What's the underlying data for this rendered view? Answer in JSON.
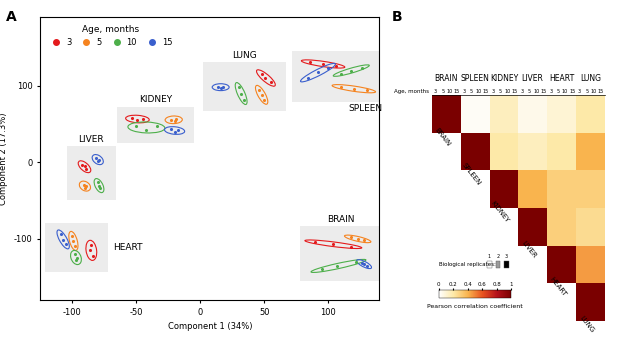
{
  "chart_data": [
    {
      "type": "scatter",
      "panel": "A",
      "x_label": "Component 1 (34%)",
      "y_label": "Component 2 (17.3%)",
      "xlim": [
        -125,
        140
      ],
      "ylim": [
        -180,
        190
      ],
      "xticks": [
        -100,
        -50,
        0,
        50,
        100
      ],
      "yticks": [
        -100,
        0,
        100
      ],
      "legend": "upper left",
      "legend_title": "Age, months",
      "tissues": [
        "LIVER",
        "HEART",
        "KIDNEY",
        "LUNG",
        "SPLEEN",
        "BRAIN"
      ],
      "series": [
        {
          "name": "3",
          "color": "#e41a1c",
          "points": {
            "LIVER": {
              "x": [
                -92,
                -89,
                -90
              ],
              "y": [
                -3,
                -9,
                -5
              ]
            },
            "HEART": {
              "x": [
                -85,
                -86,
                -84
              ],
              "y": [
                -108,
                -115,
                -122
              ]
            },
            "KIDNEY": {
              "x": [
                -53,
                -49,
                -45
              ],
              "y": [
                58,
                55,
                57
              ]
            },
            "LUNG": {
              "x": [
                48,
                51,
                55
              ],
              "y": [
                116,
                110,
                105
              ]
            },
            "SPLEEN": {
              "x": [
                86,
                96,
                106
              ],
              "y": [
                131,
                129,
                126
              ]
            },
            "BRAIN": {
              "x": [
                90,
                104,
                118
              ],
              "y": [
                -104,
                -107,
                -110
              ]
            }
          }
        },
        {
          "name": "5",
          "color": "#f5831f",
          "points": {
            "LIVER": {
              "x": [
                -91,
                -90,
                -89
              ],
              "y": [
                -29,
                -33,
                -31
              ]
            },
            "HEART": {
              "x": [
                -100,
                -99,
                -98
              ],
              "y": [
                -96,
                -103,
                -109
              ]
            },
            "KIDNEY": {
              "x": [
                -23,
                -20,
                -19
              ],
              "y": [
                56,
                54,
                57
              ]
            },
            "LUNG": {
              "x": [
                46,
                48,
                50
              ],
              "y": [
                95,
                88,
                82
              ]
            },
            "SPLEEN": {
              "x": [
                110,
                120,
                130
              ],
              "y": [
                99,
                96,
                94
              ]
            },
            "BRAIN": {
              "x": [
                118,
                123,
                128
              ],
              "y": [
                -98,
                -100,
                -102
              ]
            }
          }
        },
        {
          "name": "10",
          "color": "#4daf4a",
          "points": {
            "LIVER": {
              "x": [
                -80,
                -79,
                -78
              ],
              "y": [
                -26,
                -31,
                -34
              ]
            },
            "HEART": {
              "x": [
                -98,
                -96,
                -97
              ],
              "y": [
                -120,
                -125,
                -128
              ]
            },
            "KIDNEY": {
              "x": [
                -50,
                -42,
                -34
              ],
              "y": [
                48,
                42,
                47
              ]
            },
            "LUNG": {
              "x": [
                30,
                32,
                34
              ],
              "y": [
                98,
                90,
                82
              ]
            },
            "SPLEEN": {
              "x": [
                110,
                118,
                126
              ],
              "y": [
                116,
                120,
                124
              ]
            },
            "BRAIN": {
              "x": [
                95,
                107,
                122
              ],
              "y": [
                -140,
                -136,
                -130
              ]
            }
          }
        },
        {
          "name": "15",
          "color": "#3a5fcd",
          "points": {
            "LIVER": {
              "x": [
                -81,
                -79,
                -80
              ],
              "y": [
                6,
                3,
                2
              ]
            },
            "HEART": {
              "x": [
                -109,
                -107,
                -105
              ],
              "y": [
                -94,
                -101,
                -107
              ]
            },
            "KIDNEY": {
              "x": [
                -23,
                -20,
                -17
              ],
              "y": [
                43,
                40,
                42
              ]
            },
            "LUNG": {
              "x": [
                14,
                16,
                18
              ],
              "y": [
                99,
                97,
                99
              ]
            },
            "SPLEEN": {
              "x": [
                84,
                92,
                100
              ],
              "y": [
                110,
                118,
                124
              ]
            },
            "BRAIN": {
              "x": [
                126,
                128,
                130
              ],
              "y": [
                -131,
                -133,
                -135
              ]
            }
          }
        }
      ]
    },
    {
      "type": "heatmap",
      "panel": "B",
      "categories": [
        "BRAIN",
        "SPLEEN",
        "KIDNEY",
        "LIVER",
        "HEART",
        "LUNG"
      ],
      "cells": [
        [
          1,
          0.02,
          0.15,
          0.05,
          0.1,
          0.2
        ],
        [
          null,
          1,
          0.2,
          0.15,
          0.2,
          0.4
        ],
        [
          null,
          null,
          1,
          0.4,
          0.3,
          0.3
        ],
        [
          null,
          null,
          null,
          1,
          0.3,
          0.25
        ],
        [
          null,
          null,
          null,
          null,
          1,
          0.45
        ],
        [
          null,
          null,
          null,
          null,
          null,
          1
        ]
      ],
      "age_title": "Age, months",
      "ages": [
        3,
        5,
        10,
        15
      ],
      "colorbar": {
        "label": "Pearson correlation coefficient",
        "range": [
          0,
          1
        ],
        "ticks": [
          0,
          0.2,
          0.4,
          0.6,
          0.8,
          1
        ]
      },
      "replicates": {
        "title": "Biological replicates:",
        "labels": [
          "1",
          "2",
          "3"
        ]
      }
    }
  ]
}
